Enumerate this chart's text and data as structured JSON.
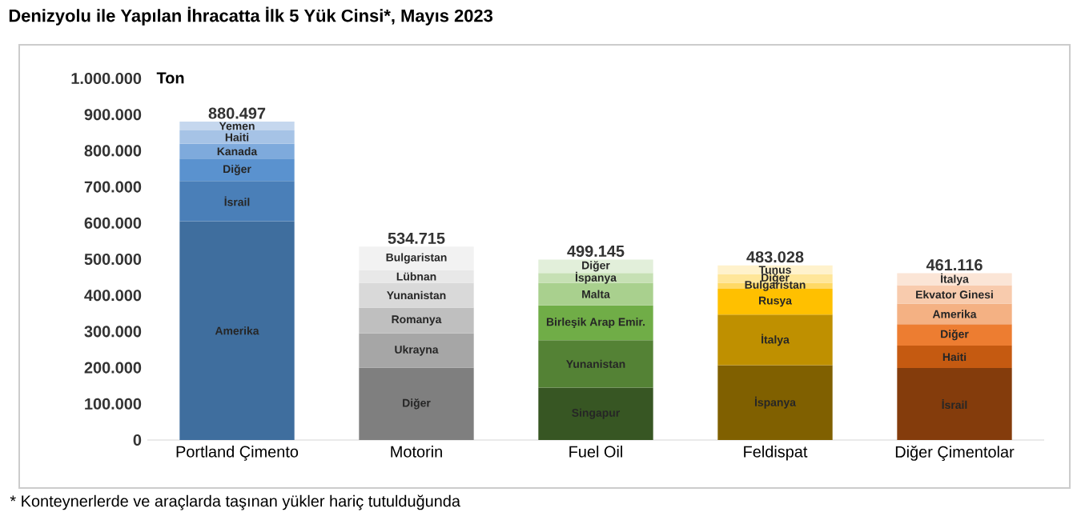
{
  "chart_data": {
    "type": "bar",
    "stacked": true,
    "title": "Denizyolu ile Yapılan İhracatta İlk 5 Yük Cinsi*, Mayıs 2023",
    "ylabel": "Ton",
    "categories": [
      "Portland Çimento",
      "Motorin",
      "Fuel Oil",
      "Feldispat",
      "Diğer Çimentolar"
    ],
    "series": [
      {
        "values": [
          605000,
          200000,
          145000,
          207000,
          199000
        ],
        "colors": [
          "#3f6e9e",
          "#7f7f7f",
          "#375623",
          "#806000",
          "#843c0c"
        ]
      },
      {
        "values": [
          111000,
          95000,
          131000,
          140000,
          62000
        ],
        "colors": [
          "#4a7fb8",
          "#a6a6a6",
          "#548235",
          "#bf9000",
          "#c55a11"
        ]
      },
      {
        "values": [
          62000,
          71000,
          96000,
          71000,
          59000
        ],
        "colors": [
          "#5a92cf",
          "#bfbfbf",
          "#70ad47",
          "#ffc000",
          "#ed7d31"
        ]
      },
      {
        "values": [
          41000,
          69000,
          63000,
          17000,
          57000
        ],
        "colors": [
          "#7eaadc",
          "#d9d9d9",
          "#a9d08e",
          "#ffd966",
          "#f4b183"
        ]
      },
      {
        "values": [
          37000,
          35000,
          27000,
          23000,
          51000
        ],
        "colors": [
          "#a6c3e6",
          "#e8e8e8",
          "#c6e0b4",
          "#ffe699",
          "#f8cbad"
        ]
      },
      {
        "values": [
          24497,
          64715,
          37145,
          25028,
          33116
        ],
        "colors": [
          "#c5d7ee",
          "#f2f2f2",
          "#e2efda",
          "#fff2cc",
          "#fbe5d6"
        ]
      }
    ],
    "totals": [
      "880.497",
      "534.715",
      "499.145",
      "483.028",
      "461.116"
    ],
    "ylim": [
      0,
      1000000
    ],
    "yticks": [
      0,
      {
        "value": 100000,
        "label": "100.000"
      },
      {
        "value": 200000,
        "label": "200.000"
      },
      {
        "value": 300000,
        "label": "300.000"
      },
      {
        "value": 400000,
        "label": "400.000"
      },
      {
        "value": 500000,
        "label": "500.000"
      },
      {
        "value": 600000,
        "label": "600.000"
      },
      {
        "value": 700000,
        "label": "700.000"
      },
      {
        "value": 800000,
        "label": "800.000"
      },
      {
        "value": 900000,
        "label": "900.000"
      },
      {
        "value": 1000000,
        "label": "1.000.000"
      }
    ],
    "annotations": [
      "Amerika",
      "İsrail",
      "Diğer",
      "Kanada",
      "Haiti",
      "Yemen",
      "Diğer",
      "Ukrayna",
      "Romanya",
      "Yunanistan",
      "Lübnan",
      "Bulgaristan",
      "Singapur",
      "Yunanistan",
      "Birleşik Arap Emir.",
      "Malta",
      "İspanya",
      "Diğer",
      "İspanya",
      "İtalya",
      "Rusya",
      "Bulgaristan",
      "Diğer",
      "Tunus",
      "İsrail",
      "Haiti",
      "Diğer",
      "Amerika",
      "Ekvator Ginesi",
      "İtalya",
      "* Konteynerlerde ve araçlarda taşınan yükler hariç tutulduğunda"
    ]
  }
}
